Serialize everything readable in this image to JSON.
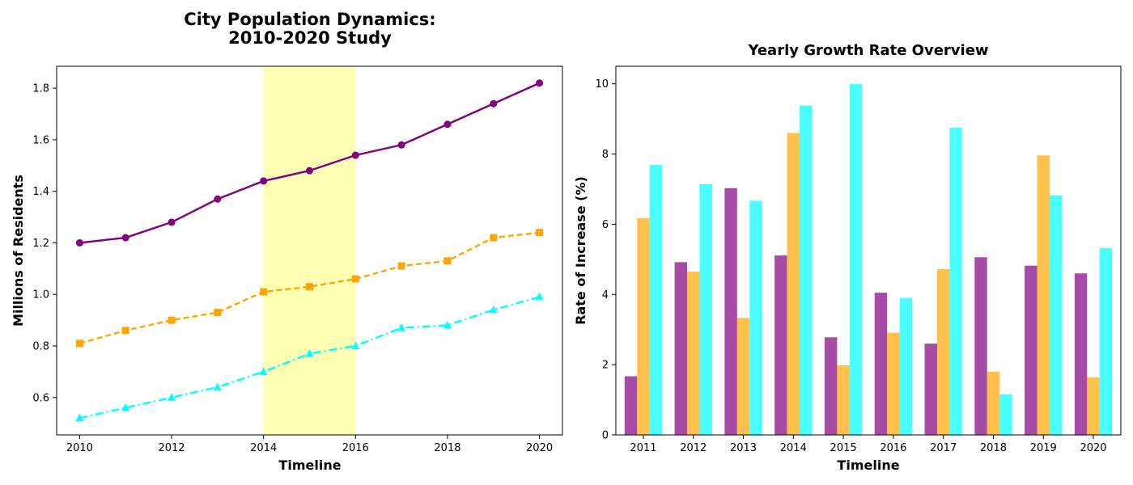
{
  "colors": {
    "purple": "#800080",
    "orange": "#FFA500",
    "cyan": "#00FFFF",
    "highlight": "#FFFF99"
  },
  "chart_data": [
    {
      "type": "line",
      "title": "City Population Dynamics:",
      "title_line2": "2010-2020 Study",
      "xlabel": "Timeline",
      "ylabel": "Millions of Residents",
      "x": [
        2010,
        2011,
        2012,
        2013,
        2014,
        2015,
        2016,
        2017,
        2018,
        2019,
        2020
      ],
      "xlim": [
        2009.5,
        2020.5
      ],
      "ylim": [
        0.455,
        1.885
      ],
      "xticks": [
        2010,
        2012,
        2014,
        2016,
        2018,
        2020
      ],
      "yticks": [
        0.6,
        0.8,
        1.0,
        1.2,
        1.4,
        1.6,
        1.8
      ],
      "highlight_span": [
        2014,
        2016
      ],
      "grid": false,
      "series": [
        {
          "color": "#800080",
          "marker": "circle",
          "linestyle": "solid",
          "values": [
            1.2,
            1.22,
            1.28,
            1.37,
            1.44,
            1.48,
            1.54,
            1.58,
            1.66,
            1.74,
            1.82
          ]
        },
        {
          "color": "#FFA500",
          "marker": "square",
          "linestyle": "dashed",
          "values": [
            0.81,
            0.86,
            0.9,
            0.93,
            1.01,
            1.03,
            1.06,
            1.11,
            1.13,
            1.22,
            1.24
          ]
        },
        {
          "color": "#00FFFF",
          "marker": "triangle",
          "linestyle": "dashdot",
          "values": [
            0.52,
            0.56,
            0.6,
            0.64,
            0.7,
            0.77,
            0.8,
            0.87,
            0.88,
            0.94,
            0.99
          ]
        }
      ]
    },
    {
      "type": "bar",
      "title": "Yearly Growth Rate Overview",
      "xlabel": "Timeline",
      "ylabel": "Rate of Increase (%)",
      "categories": [
        "2011",
        "2012",
        "2013",
        "2014",
        "2015",
        "2016",
        "2017",
        "2018",
        "2019",
        "2020"
      ],
      "ylim": [
        0,
        10.5
      ],
      "yticks": [
        0,
        2,
        4,
        6,
        8,
        10
      ],
      "grid": false,
      "series": [
        {
          "color": "#800080",
          "opacity": 0.7,
          "values": [
            1.67,
            4.92,
            7.03,
            5.11,
            2.78,
            4.05,
            2.6,
            5.06,
            4.82,
            4.6
          ]
        },
        {
          "color": "#FFA500",
          "opacity": 0.7,
          "values": [
            6.17,
            4.65,
            3.33,
            8.6,
            1.98,
            2.91,
            4.72,
            1.8,
            7.96,
            1.64
          ]
        },
        {
          "color": "#00FFFF",
          "opacity": 0.7,
          "values": [
            7.69,
            7.14,
            6.67,
            9.38,
            10.0,
            3.9,
            8.75,
            1.15,
            6.82,
            5.32
          ]
        }
      ]
    }
  ]
}
